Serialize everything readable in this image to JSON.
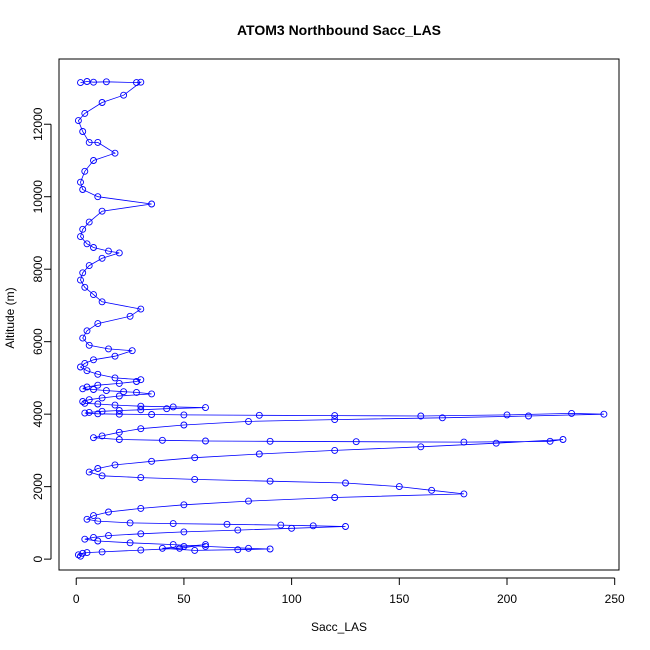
{
  "chart_data": {
    "type": "scatter",
    "title": "ATOM3 Northbound Sacc_LAS",
    "xlabel": "Sacc_LAS",
    "ylabel": "Altitude (m)",
    "xlim": [
      -8,
      252
    ],
    "ylim": [
      -300,
      13800
    ],
    "x_ticks": [
      0,
      50,
      100,
      150,
      200,
      250
    ],
    "y_ticks": [
      0,
      2000,
      4000,
      6000,
      8000,
      10000,
      12000
    ],
    "x_tick_labels": [
      "0",
      "50",
      "100",
      "150",
      "200",
      "250"
    ],
    "y_tick_labels": [
      "0",
      "2000",
      "4000",
      "6000",
      "8000",
      "10000",
      "12000"
    ],
    "grid": false,
    "marker": "open-circle",
    "connected": true,
    "series_color": "#0000ff",
    "series": [
      {
        "x": [
          2,
          5,
          8,
          14,
          28,
          30,
          22,
          12,
          4,
          1,
          3,
          6,
          10,
          18,
          8,
          4,
          2,
          3,
          10,
          35,
          12,
          6,
          3,
          2,
          5,
          8,
          15,
          20,
          12,
          6,
          3,
          2,
          4,
          8,
          12,
          30,
          25,
          10,
          5,
          3,
          6,
          15,
          26,
          18,
          8,
          4,
          2,
          5,
          10,
          18,
          30,
          28,
          20,
          10,
          5,
          3,
          8,
          14,
          22,
          28,
          35,
          20,
          12,
          6,
          3,
          4,
          10,
          18,
          30,
          45,
          60,
          42,
          30,
          20,
          12,
          6,
          4,
          10,
          20,
          35,
          50,
          85,
          120,
          160,
          200,
          230,
          245,
          210,
          170,
          120,
          80,
          50,
          30,
          20,
          12,
          8,
          20,
          40,
          60,
          90,
          130,
          180,
          220,
          226,
          195,
          160,
          120,
          85,
          55,
          35,
          18,
          10,
          6,
          12,
          30,
          55,
          90,
          125,
          150,
          165,
          180,
          120,
          80,
          50,
          30,
          15,
          8,
          5,
          10,
          25,
          45,
          70,
          95,
          110,
          125,
          100,
          75,
          50,
          30,
          15,
          8,
          4,
          10,
          25,
          45,
          60,
          80,
          90,
          75,
          55,
          40,
          50,
          60,
          48,
          30,
          12,
          5,
          3,
          1,
          2
        ],
        "y": [
          13150,
          13180,
          13160,
          13170,
          13150,
          13160,
          12800,
          12600,
          12300,
          12100,
          11800,
          11500,
          11500,
          11200,
          11000,
          10700,
          10400,
          10200,
          10000,
          9800,
          9600,
          9300,
          9100,
          8900,
          8700,
          8600,
          8500,
          8450,
          8300,
          8100,
          7900,
          7700,
          7500,
          7300,
          7100,
          6900,
          6700,
          6500,
          6300,
          6100,
          5900,
          5800,
          5750,
          5600,
          5500,
          5400,
          5300,
          5200,
          5100,
          5000,
          4950,
          4900,
          4850,
          4800,
          4750,
          4700,
          4680,
          4650,
          4620,
          4600,
          4560,
          4500,
          4450,
          4400,
          4350,
          4300,
          4280,
          4250,
          4220,
          4200,
          4180,
          4150,
          4120,
          4100,
          4080,
          4050,
          4030,
          4010,
          4000,
          3990,
          3980,
          3970,
          3960,
          3950,
          3980,
          4020,
          4000,
          3950,
          3900,
          3850,
          3800,
          3700,
          3600,
          3500,
          3400,
          3350,
          3300,
          3280,
          3260,
          3250,
          3240,
          3230,
          3250,
          3300,
          3200,
          3100,
          3000,
          2900,
          2800,
          2700,
          2600,
          2500,
          2400,
          2300,
          2250,
          2200,
          2150,
          2100,
          2000,
          1900,
          1800,
          1700,
          1600,
          1500,
          1400,
          1300,
          1200,
          1100,
          1050,
          1000,
          980,
          960,
          940,
          920,
          900,
          850,
          800,
          750,
          700,
          650,
          600,
          550,
          500,
          450,
          400,
          350,
          300,
          280,
          260,
          240,
          300,
          350,
          400,
          300,
          250,
          200,
          180,
          160,
          120,
          80
        ]
      }
    ]
  }
}
